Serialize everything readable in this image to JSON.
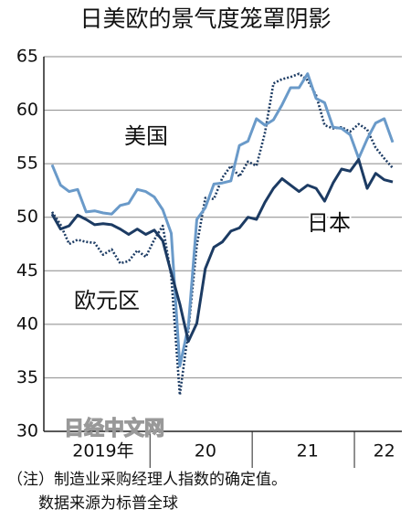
{
  "chart_data": {
    "type": "line",
    "title": "日美欧的景气度笼罩阴影",
    "categories": [
      null,
      null,
      null,
      null,
      null,
      null,
      "2019年",
      null,
      null,
      null,
      null,
      null,
      null,
      null,
      null,
      null,
      null,
      null,
      "20",
      null,
      null,
      null,
      null,
      null,
      null,
      null,
      null,
      null,
      null,
      null,
      "21",
      null,
      null,
      null,
      null,
      null,
      null,
      null,
      null,
      "22",
      null
    ],
    "series": [
      {
        "name": "日本",
        "color": "#1c3b63",
        "style": "solid",
        "values": [
          50.3,
          48.9,
          49.2,
          50.2,
          49.8,
          49.3,
          49.4,
          49.3,
          48.9,
          48.4,
          48.9,
          48.4,
          48.8,
          47.8,
          44.8,
          41.9,
          38.4,
          40.1,
          45.2,
          47.2,
          47.7,
          48.7,
          49.0,
          50.0,
          49.8,
          51.4,
          52.7,
          53.6,
          53.0,
          52.4,
          53.0,
          52.7,
          51.5,
          53.2,
          54.5,
          54.3,
          55.4,
          52.7,
          54.1,
          53.5,
          53.3
        ]
      },
      {
        "name": "美国",
        "color": "#6a9ac9",
        "style": "solid",
        "values": [
          54.9,
          53.0,
          52.4,
          52.6,
          50.5,
          50.6,
          50.4,
          50.3,
          51.1,
          51.3,
          52.6,
          52.4,
          51.9,
          50.7,
          48.5,
          36.1,
          39.8,
          49.8,
          50.9,
          53.1,
          53.2,
          53.4,
          56.7,
          57.1,
          59.2,
          58.6,
          59.1,
          60.5,
          62.1,
          62.1,
          63.4,
          61.1,
          60.7,
          58.4,
          58.3,
          57.7,
          55.5,
          57.3,
          58.8,
          59.2,
          57.0
        ]
      },
      {
        "name": "欧元区",
        "color": "#1c3b63",
        "style": "dotted",
        "values": [
          50.5,
          49.3,
          47.5,
          47.9,
          47.7,
          47.6,
          46.5,
          47.0,
          45.7,
          45.9,
          46.9,
          46.3,
          47.9,
          49.2,
          44.5,
          33.4,
          39.4,
          47.4,
          51.8,
          51.7,
          53.7,
          54.8,
          53.8,
          55.2,
          54.8,
          57.9,
          62.5,
          62.9,
          63.1,
          63.4,
          62.8,
          61.4,
          58.6,
          58.3,
          58.4,
          58.0,
          58.7,
          58.2,
          56.5,
          55.5,
          54.6
        ]
      }
    ],
    "ylim": [
      30,
      65
    ],
    "yticks": [
      30,
      35,
      40,
      45,
      50,
      55,
      60,
      65
    ],
    "grid": true,
    "watermark": "日经中文网",
    "note": [
      "（注）制造业采购经理人指数的确定值。",
      "数据来源为标普全球"
    ]
  }
}
